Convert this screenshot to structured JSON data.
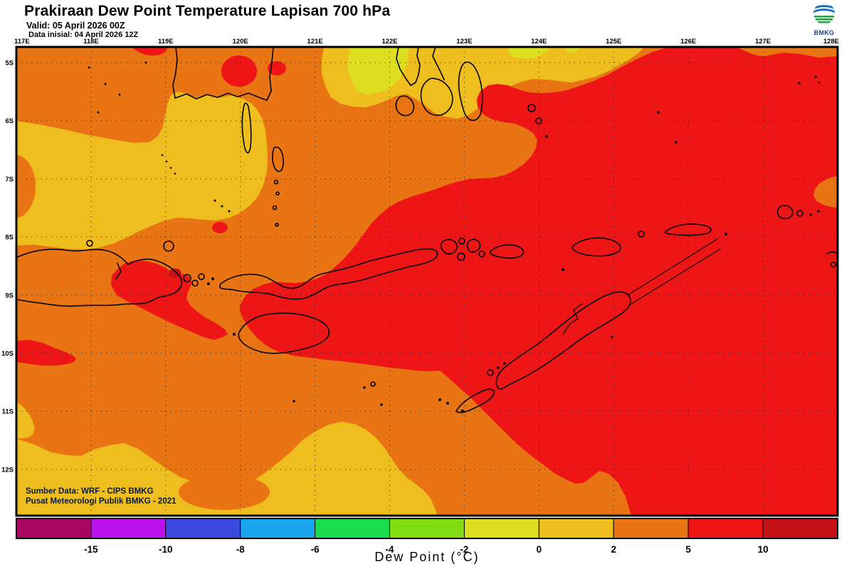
{
  "header": {
    "title": "Prakiraan Dew Point Temperature Lapisan 700 hPa",
    "valid": "Valid: 05 April 2026 00Z",
    "init": "Data inisial: 04 April 2026 12Z",
    "logo_text": "BMKG"
  },
  "map": {
    "lon_labels": [
      "117E",
      "118E",
      "119E",
      "120E",
      "121E",
      "122E",
      "123E",
      "124E",
      "125E",
      "126E",
      "127E",
      "128E"
    ],
    "lat_labels": [
      "5S",
      "6S",
      "7S",
      "8S",
      "9S",
      "10S",
      "11S",
      "12S"
    ],
    "source_line1": "Sumber Data: WRF - CIPS BMKG",
    "source_line2": "Pusat Meteorologi Publik BMKG -  2021"
  },
  "chart_data": {
    "type": "heatmap",
    "title": "Prakiraan Dew Point Temperature Lapisan 700 hPa",
    "variable": "Dew point temperature at 700 hPa (filled contours)",
    "valid_time": "05 April 2026 00Z",
    "init_time": "04 April 2026 12Z",
    "x_axis": {
      "label": "longitude",
      "tick_labels": [
        "117E",
        "118E",
        "119E",
        "120E",
        "121E",
        "122E",
        "123E",
        "124E",
        "125E",
        "126E",
        "127E",
        "128E"
      ],
      "position": "top"
    },
    "y_axis": {
      "label": "latitude",
      "tick_labels": [
        "5S",
        "6S",
        "7S",
        "8S",
        "9S",
        "10S",
        "11S",
        "12S"
      ],
      "position": "left"
    },
    "grid": "dotted black, 1-degree spacing",
    "colorbar": {
      "label": "Dew Point (°C)",
      "position": "bottom",
      "tick_labels": [
        "-15",
        "-10",
        "-8",
        "-6",
        "-4",
        "-2",
        "0",
        "2",
        "5",
        "10"
      ],
      "segment_colors": [
        "#A80562",
        "#BB11EE",
        "#3A4ADF",
        "#18A5EE",
        "#19DD4E",
        "#82DE12",
        "#DDDE20",
        "#EDBE1D",
        "#E97413",
        "#ED1515",
        "#C41115"
      ],
      "segment_ranges": [
        "< -15",
        "-15 to -10",
        "-10 to -8",
        "-8 to -6",
        "-6 to -4",
        "-4 to -2",
        "-2 to 0",
        "0 to 2",
        "2 to 5",
        "5 to 10",
        "> 10"
      ]
    },
    "field_regions": [
      {
        "value_range_c": "2 to 5",
        "color": "#E97413",
        "where": "background over most of the western half"
      },
      {
        "value_range_c": "5 to 10",
        "color": "#ED1515",
        "where": "large mass covering the east (~122E-128E) plus patches near 119E/8.9S, 120.1E/5.3S and the west edge near 10S"
      },
      {
        "value_range_c": "0 to 2",
        "color": "#EDBE1D",
        "where": "west-central blob 117-120.5E / 6-7.5S, band along top 121-125.5E, and along the southern edge below 12S west of 122.5E"
      },
      {
        "value_range_c": "-2 to 0",
        "color": "#DDDE20",
        "where": "small patches at the top edge near 121.7E and 123.7E"
      },
      {
        "value_range_c": "> 10",
        "color": "#C41115",
        "where": "tiny core near 119.1E / 8.9S"
      }
    ]
  },
  "palette": {
    "orange": "#E97413",
    "red": "#ED1515",
    "amber": "#EDBE1D",
    "yellow": "#DDDE20",
    "dark_red": "#C41115",
    "coast": "#000000",
    "grid": "#222222",
    "frame": "#000000",
    "source_text": "#0A1A3C",
    "logo_blue": "#1B6FC4",
    "logo_green": "#2E9E49",
    "logo_navy": "#1B3F8F"
  }
}
